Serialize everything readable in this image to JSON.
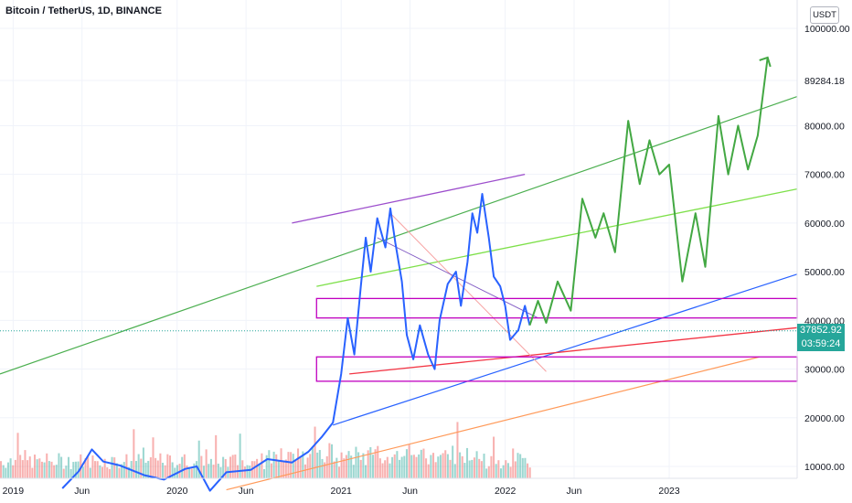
{
  "chart_data": {
    "type": "line",
    "title": "Bitcoin / TetherUS, 1D, BINANCE",
    "unit": "USDT",
    "current_price": "37852.92",
    "countdown": "03:59:24",
    "ylim": [
      5000,
      105000
    ],
    "y_ticks": [
      "100000.00",
      "89284.18",
      "80000.00",
      "70000.00",
      "60000.00",
      "50000.00",
      "40000.00",
      "30000.00",
      "20000.00",
      "10000.00"
    ],
    "x_ticks": [
      "2019",
      "Jun",
      "2020",
      "Jun",
      "2021",
      "Jun",
      "2022",
      "Jun",
      "2023"
    ],
    "grid": true,
    "price_path": [
      [
        2019.3,
        5500
      ],
      [
        2019.4,
        9000
      ],
      [
        2019.48,
        13500
      ],
      [
        2019.55,
        11000
      ],
      [
        2019.65,
        10200
      ],
      [
        2019.8,
        8200
      ],
      [
        2019.92,
        7300
      ],
      [
        2020.05,
        9500
      ],
      [
        2020.12,
        10000
      ],
      [
        2020.2,
        5000
      ],
      [
        2020.3,
        8800
      ],
      [
        2020.45,
        9300
      ],
      [
        2020.55,
        11500
      ],
      [
        2020.7,
        10800
      ],
      [
        2020.8,
        13000
      ],
      [
        2020.88,
        16000
      ],
      [
        2020.95,
        19000
      ],
      [
        2021.0,
        29000
      ],
      [
        2021.04,
        40500
      ],
      [
        2021.08,
        33000
      ],
      [
        2021.12,
        47000
      ],
      [
        2021.15,
        57000
      ],
      [
        2021.18,
        50000
      ],
      [
        2021.22,
        61000
      ],
      [
        2021.27,
        55000
      ],
      [
        2021.3,
        63000
      ],
      [
        2021.33,
        56000
      ],
      [
        2021.37,
        48000
      ],
      [
        2021.4,
        37000
      ],
      [
        2021.44,
        32000
      ],
      [
        2021.48,
        39000
      ],
      [
        2021.53,
        33000
      ],
      [
        2021.57,
        30000
      ],
      [
        2021.6,
        40000
      ],
      [
        2021.65,
        47500
      ],
      [
        2021.7,
        50000
      ],
      [
        2021.73,
        43000
      ],
      [
        2021.77,
        52000
      ],
      [
        2021.8,
        62000
      ],
      [
        2021.83,
        58000
      ],
      [
        2021.86,
        66000
      ],
      [
        2021.9,
        57000
      ],
      [
        2021.93,
        49000
      ],
      [
        2021.97,
        47000
      ],
      [
        2022.0,
        43000
      ],
      [
        2022.03,
        36000
      ],
      [
        2022.08,
        38000
      ],
      [
        2022.12,
        43000
      ],
      [
        2022.15,
        39000
      ]
    ],
    "projection_path": [
      [
        2022.15,
        39000
      ],
      [
        2022.2,
        44000
      ],
      [
        2022.25,
        39500
      ],
      [
        2022.32,
        48000
      ],
      [
        2022.4,
        42000
      ],
      [
        2022.47,
        65000
      ],
      [
        2022.55,
        57000
      ],
      [
        2022.6,
        62000
      ],
      [
        2022.67,
        54000
      ],
      [
        2022.75,
        81000
      ],
      [
        2022.82,
        68000
      ],
      [
        2022.88,
        77000
      ],
      [
        2022.94,
        70000
      ],
      [
        2023.0,
        72000
      ],
      [
        2023.08,
        48000
      ],
      [
        2023.16,
        62000
      ],
      [
        2023.22,
        51000
      ],
      [
        2023.3,
        82000
      ],
      [
        2023.36,
        70000
      ],
      [
        2023.42,
        80000
      ],
      [
        2023.48,
        71000
      ],
      [
        2023.54,
        78000
      ],
      [
        2023.6,
        94000
      ]
    ],
    "horizontal_zones": [
      [
        40500,
        44500
      ],
      [
        27500,
        32500
      ]
    ],
    "volume_bars": 220
  }
}
